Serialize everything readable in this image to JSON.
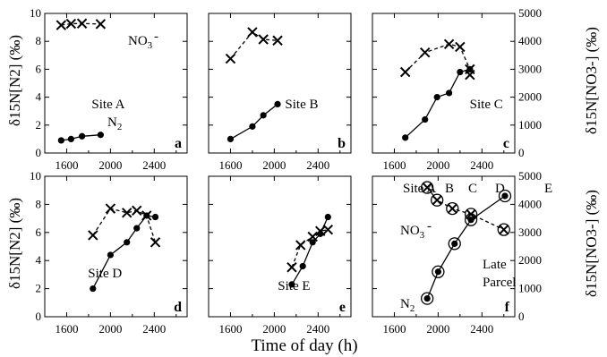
{
  "figure": {
    "xlabel": "Time of day (h)",
    "ylabel_left": "δ15N[N2] (‰)",
    "ylabel_right": "δ15N[NO3-] (‰)"
  },
  "chart_data": [
    {
      "type": "scatter",
      "panel": "a",
      "site_label": "Site A",
      "xlim": [
        1400,
        2700
      ],
      "ylim": [
        0,
        10
      ],
      "y2lim": [
        0,
        5000
      ],
      "xticks": [
        "1600",
        "2000",
        "2400"
      ],
      "yticks": [
        "0",
        "2",
        "4",
        "6",
        "8",
        "10"
      ],
      "annotations": [
        "NO3-",
        "N2"
      ],
      "series": [
        {
          "name": "N2",
          "axis": "left",
          "marker": "dot",
          "line": "solid",
          "x": [
            1550,
            1640,
            1740,
            1910
          ],
          "y": [
            0.9,
            1.0,
            1.2,
            1.3
          ]
        },
        {
          "name": "NO3-",
          "axis": "right",
          "marker": "x",
          "line": "dashed",
          "x": [
            1550,
            1640,
            1740,
            1910
          ],
          "y": [
            4580,
            4630,
            4640,
            4620
          ]
        }
      ]
    },
    {
      "type": "scatter",
      "panel": "b",
      "site_label": "Site B",
      "xlim": [
        1400,
        2700
      ],
      "ylim": [
        0,
        10
      ],
      "y2lim": [
        0,
        5000
      ],
      "xticks": [
        "1600",
        "2000",
        "2400"
      ],
      "series": [
        {
          "name": "N2",
          "axis": "left",
          "marker": "dot",
          "line": "solid",
          "x": [
            1600,
            1800,
            1900,
            2030
          ],
          "y": [
            1.0,
            1.9,
            2.7,
            3.5
          ]
        },
        {
          "name": "NO3-",
          "axis": "right",
          "marker": "x",
          "line": "dashed",
          "x": [
            1600,
            1800,
            1900,
            2030
          ],
          "y": [
            3380,
            4330,
            4070,
            4030
          ]
        }
      ]
    },
    {
      "type": "scatter",
      "panel": "c",
      "site_label": "Site C",
      "xlim": [
        1400,
        2700
      ],
      "ylim": [
        0,
        10
      ],
      "y2lim": [
        0,
        5000
      ],
      "xticks": [
        "1600",
        "2000",
        "2400"
      ],
      "y2ticks": [
        "0",
        "1000",
        "2000",
        "3000",
        "4000",
        "5000"
      ],
      "series": [
        {
          "name": "N2",
          "axis": "left",
          "marker": "dot",
          "line": "solid",
          "x": [
            1700,
            1880,
            1990,
            2100,
            2200,
            2290
          ],
          "y": [
            1.1,
            2.4,
            4.0,
            4.3,
            5.8,
            6.0
          ]
        },
        {
          "name": "NO3-",
          "axis": "right",
          "marker": "x",
          "line": "dashed",
          "x": [
            1700,
            1880,
            2100,
            2200,
            2290,
            2290
          ],
          "y": [
            2900,
            3600,
            3900,
            3800,
            3000,
            2800
          ]
        }
      ]
    },
    {
      "type": "scatter",
      "panel": "d",
      "site_label": "Site D",
      "xlim": [
        1400,
        2700
      ],
      "ylim": [
        0,
        10
      ],
      "y2lim": [
        0,
        5000
      ],
      "xticks": [
        "1600",
        "2000",
        "2400"
      ],
      "yticks": [
        "0",
        "2",
        "4",
        "6",
        "8",
        "10"
      ],
      "series": [
        {
          "name": "N2",
          "axis": "left",
          "marker": "dot",
          "line": "solid",
          "x": [
            1840,
            2000,
            2150,
            2240,
            2330,
            2410
          ],
          "y": [
            2.0,
            4.4,
            5.3,
            6.3,
            7.2,
            7.1
          ]
        },
        {
          "name": "NO3-",
          "axis": "right",
          "marker": "x",
          "line": "dashed",
          "x": [
            1840,
            2000,
            2150,
            2240,
            2330,
            2410
          ],
          "y": [
            2900,
            3850,
            3700,
            3780,
            3600,
            2650
          ]
        }
      ]
    },
    {
      "type": "scatter",
      "panel": "e",
      "site_label": "Site E",
      "xlim": [
        1400,
        2700
      ],
      "ylim": [
        0,
        10
      ],
      "y2lim": [
        0,
        5000
      ],
      "xticks": [
        "1600",
        "2000",
        "2400"
      ],
      "series": [
        {
          "name": "N2",
          "axis": "left",
          "marker": "dot",
          "line": "solid",
          "x": [
            2160,
            2260,
            2350,
            2420,
            2490
          ],
          "y": [
            2.3,
            3.6,
            5.3,
            5.9,
            7.1
          ]
        },
        {
          "name": "NO3-",
          "axis": "right",
          "marker": "x",
          "line": "dashed",
          "x": [
            2160,
            2240,
            2350,
            2420,
            2490
          ],
          "y": [
            1760,
            2550,
            2850,
            3050,
            3100
          ]
        }
      ]
    },
    {
      "type": "scatter",
      "panel": "f",
      "xlim": [
        1400,
        2700
      ],
      "ylim": [
        0,
        10
      ],
      "y2lim": [
        0,
        5000
      ],
      "xticks": [
        "1600",
        "2000",
        "2400"
      ],
      "y2ticks": [
        "0",
        "1000",
        "2000",
        "3000",
        "4000",
        "5000"
      ],
      "annotations": [
        "Site A",
        "B",
        "C",
        "D",
        "E",
        "NO3-",
        "N2",
        "Late",
        "Parcel"
      ],
      "series": [
        {
          "name": "N2",
          "axis": "left",
          "marker": "dot-ring",
          "line": "solid",
          "x": [
            1900,
            2000,
            2150,
            2300,
            2610
          ],
          "y": [
            1.3,
            3.2,
            5.2,
            6.9,
            8.6
          ]
        },
        {
          "name": "NO3-",
          "axis": "right",
          "marker": "x-ring",
          "line": "dashed",
          "x": [
            1900,
            1990,
            2130,
            2300,
            2600
          ],
          "y": [
            4600,
            4150,
            3850,
            3650,
            3100
          ]
        }
      ]
    }
  ]
}
